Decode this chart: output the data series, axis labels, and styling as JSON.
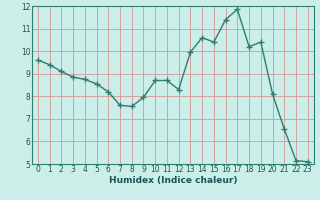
{
  "x": [
    0,
    1,
    2,
    3,
    4,
    5,
    6,
    7,
    8,
    9,
    10,
    11,
    12,
    13,
    14,
    15,
    16,
    17,
    18,
    19,
    20,
    21,
    22,
    23
  ],
  "y": [
    9.6,
    9.4,
    9.1,
    8.85,
    8.75,
    8.55,
    8.2,
    7.6,
    7.55,
    7.95,
    8.7,
    8.7,
    8.3,
    9.95,
    10.6,
    10.4,
    11.4,
    11.85,
    10.2,
    10.4,
    8.1,
    6.55,
    5.15,
    5.1
  ],
  "xlabel": "Humidex (Indice chaleur)",
  "ylim": [
    5,
    12
  ],
  "xlim": [
    -0.5,
    23.5
  ],
  "yticks": [
    5,
    6,
    7,
    8,
    9,
    10,
    11,
    12
  ],
  "xticks": [
    0,
    1,
    2,
    3,
    4,
    5,
    6,
    7,
    8,
    9,
    10,
    11,
    12,
    13,
    14,
    15,
    16,
    17,
    18,
    19,
    20,
    21,
    22,
    23
  ],
  "line_color": "#2e7d6e",
  "marker_color": "#2e7d6e",
  "bg_color": "#cceee8",
  "grid_color": "#d4a0a0",
  "tick_color": "#1a5555",
  "xlabel_color": "#1a5555"
}
